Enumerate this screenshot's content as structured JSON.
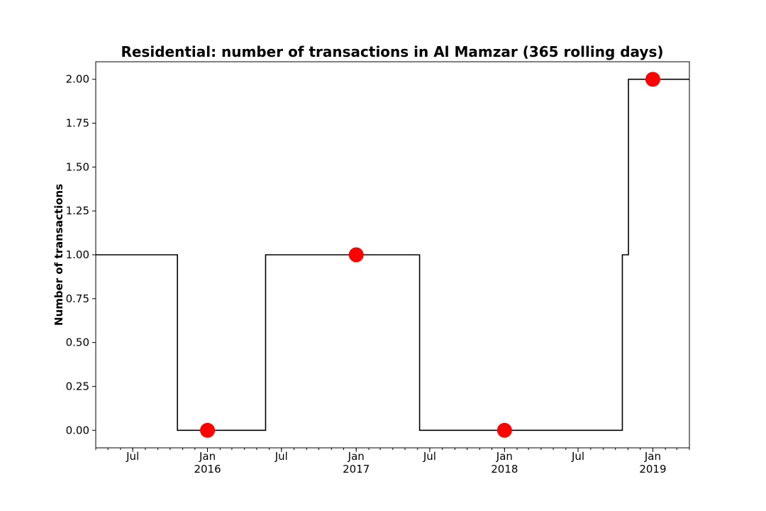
{
  "chart_data": {
    "type": "line",
    "title": "Residential: number of transactions in Al Mamzar (365 rolling days)",
    "xlabel": "",
    "ylabel": "Number of transactions",
    "xlim": [
      "2015-04-01",
      "2019-04-01"
    ],
    "ylim": [
      -0.1,
      2.1
    ],
    "grid": false,
    "y_ticks": [
      0.0,
      0.25,
      0.5,
      0.75,
      1.0,
      1.25,
      1.5,
      1.75,
      2.0
    ],
    "y_tick_labels": [
      "0.00",
      "0.25",
      "0.50",
      "0.75",
      "1.00",
      "1.25",
      "1.50",
      "1.75",
      "2.00"
    ],
    "x_ticks": [
      {
        "date": "2015-07-01",
        "label": "Jul",
        "year": ""
      },
      {
        "date": "2016-01-01",
        "label": "Jan",
        "year": "2016"
      },
      {
        "date": "2016-07-01",
        "label": "Jul",
        "year": ""
      },
      {
        "date": "2017-01-01",
        "label": "Jan",
        "year": "2017"
      },
      {
        "date": "2017-07-01",
        "label": "Jul",
        "year": ""
      },
      {
        "date": "2018-01-01",
        "label": "Jan",
        "year": "2018"
      },
      {
        "date": "2018-07-01",
        "label": "Jul",
        "year": ""
      },
      {
        "date": "2019-01-01",
        "label": "Jan",
        "year": "2019"
      }
    ],
    "series": [
      {
        "color": "#000000",
        "drawstyle": "steps-post",
        "points": [
          {
            "x": "2015-04-01",
            "y": 1
          },
          {
            "x": "2015-10-19",
            "y": 0
          },
          {
            "x": "2016-05-23",
            "y": 1
          },
          {
            "x": "2017-06-06",
            "y": 0
          },
          {
            "x": "2018-10-18",
            "y": 1
          },
          {
            "x": "2018-11-02",
            "y": 2
          },
          {
            "x": "2019-04-01",
            "y": 2
          }
        ]
      },
      {
        "color": "#ff0000",
        "marker": "circle",
        "points": [
          {
            "x": "2016-01-01",
            "y": 0
          },
          {
            "x": "2017-01-01",
            "y": 1
          },
          {
            "x": "2018-01-01",
            "y": 0
          },
          {
            "x": "2019-01-01",
            "y": 2
          }
        ]
      }
    ]
  }
}
